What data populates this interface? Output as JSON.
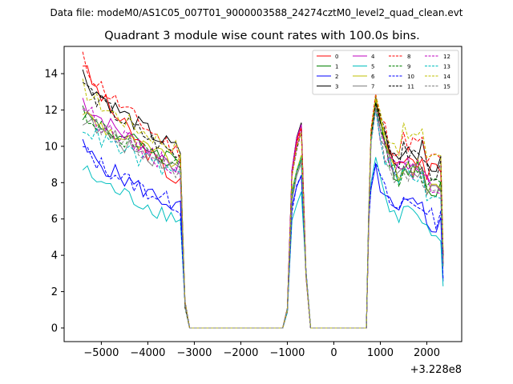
{
  "figure": {
    "suptitle": "Data file: modeM0/AS1C05_007T01_9000003588_24274cztM0_level2_quad_clean.evt",
    "title": "Quadrant 3 module wise count rates with 100.0s bins.",
    "offset_text": "+3.228e8"
  },
  "chart_data": {
    "type": "line",
    "title": "Quadrant 3 module wise count rates with 100.0s bins.",
    "xlabel": "",
    "ylabel": "",
    "x_offset": 322800000,
    "xlim": [
      -5800,
      2750
    ],
    "ylim": [
      -0.75,
      15.5
    ],
    "xticks": [
      -5000,
      -4000,
      -3000,
      -2000,
      -1000,
      0,
      1000,
      2000
    ],
    "xtick_labels": [
      "−5000",
      "−4000",
      "−3000",
      "−2000",
      "−1000",
      "0",
      "1000",
      "2000"
    ],
    "yticks": [
      0,
      2,
      4,
      6,
      8,
      10,
      12,
      14
    ],
    "ytick_labels": [
      "0",
      "2",
      "4",
      "6",
      "8",
      "10",
      "12",
      "14"
    ],
    "legend_location": "top-right",
    "legend_ncol": 4,
    "bin_width": 100,
    "segments": [
      {
        "start": -5400,
        "end": -3300,
        "drop": [
          -3200,
          -3100
        ]
      },
      {
        "start": -1100,
        "end": -700,
        "rise": -1000
      },
      {
        "start": 800,
        "end": 2300
      }
    ],
    "series": [
      {
        "name": "0",
        "color": "#ff0000",
        "dash": "solid",
        "early_start": 14.7,
        "early_end": 7.9,
        "peak2": 11.2,
        "peak3": 12.4,
        "tail": 8.5
      },
      {
        "name": "1",
        "color": "#008000",
        "dash": "solid",
        "early_start": 11.9,
        "early_end": 9.2,
        "peak2": 9.3,
        "peak3": 12.5,
        "tail": 7.8
      },
      {
        "name": "2",
        "color": "#0000ff",
        "dash": "solid",
        "early_start": 10.0,
        "early_end": 6.6,
        "peak2": 8.4,
        "peak3": 9.0,
        "tail": 5.7
      },
      {
        "name": "3",
        "color": "#000000",
        "dash": "solid",
        "early_start": 14.0,
        "early_end": 9.7,
        "peak2": 11.3,
        "peak3": 12.7,
        "tail": 8.9
      },
      {
        "name": "4",
        "color": "#bf00bf",
        "dash": "solid",
        "early_start": 12.6,
        "early_end": 8.9,
        "peak2": 11.2,
        "peak3": 12.2,
        "tail": 8.0
      },
      {
        "name": "5",
        "color": "#00bfbf",
        "dash": "solid",
        "early_start": 8.8,
        "early_end": 6.0,
        "peak2": 7.5,
        "peak3": 9.4,
        "tail": 5.1
      },
      {
        "name": "6",
        "color": "#bfbf00",
        "dash": "solid",
        "early_start": 12.0,
        "early_end": 9.0,
        "peak2": 9.5,
        "peak3": 12.6,
        "tail": 7.8
      },
      {
        "name": "7",
        "color": "#808080",
        "dash": "solid",
        "early_start": 11.6,
        "early_end": 8.8,
        "peak2": 9.1,
        "peak3": 12.2,
        "tail": 7.6
      },
      {
        "name": "8",
        "color": "#ff0000",
        "dash": "dashed",
        "early_start": 14.8,
        "early_end": 9.6,
        "peak2": 11.0,
        "peak3": 12.9,
        "tail": 9.2
      },
      {
        "name": "9",
        "color": "#008000",
        "dash": "dashed",
        "early_start": 12.0,
        "early_end": 8.7,
        "peak2": 9.3,
        "peak3": 12.4,
        "tail": 7.7
      },
      {
        "name": "10",
        "color": "#0000ff",
        "dash": "dashed",
        "early_start": 9.9,
        "early_end": 6.7,
        "peak2": 8.4,
        "peak3": 9.1,
        "tail": 6.0
      },
      {
        "name": "11",
        "color": "#000000",
        "dash": "dashed",
        "early_start": 13.6,
        "early_end": 9.4,
        "peak2": 10.8,
        "peak3": 12.4,
        "tail": 8.6
      },
      {
        "name": "12",
        "color": "#bf00bf",
        "dash": "dashed",
        "early_start": 12.3,
        "early_end": 8.7,
        "peak2": 10.9,
        "peak3": 12.0,
        "tail": 7.8
      },
      {
        "name": "13",
        "color": "#00bfbf",
        "dash": "dashed",
        "early_start": 11.2,
        "early_end": 8.4,
        "peak2": 9.4,
        "peak3": 12.0,
        "tail": 7.4
      },
      {
        "name": "14",
        "color": "#bfbf00",
        "dash": "dashed",
        "early_start": 13.3,
        "early_end": 9.8,
        "peak2": 10.8,
        "peak3": 12.8,
        "tail": 9.6
      },
      {
        "name": "15",
        "color": "#808080",
        "dash": "dashed",
        "early_start": 11.9,
        "early_end": 8.6,
        "peak2": 9.2,
        "peak3": 12.1,
        "tail": 7.5
      }
    ]
  }
}
